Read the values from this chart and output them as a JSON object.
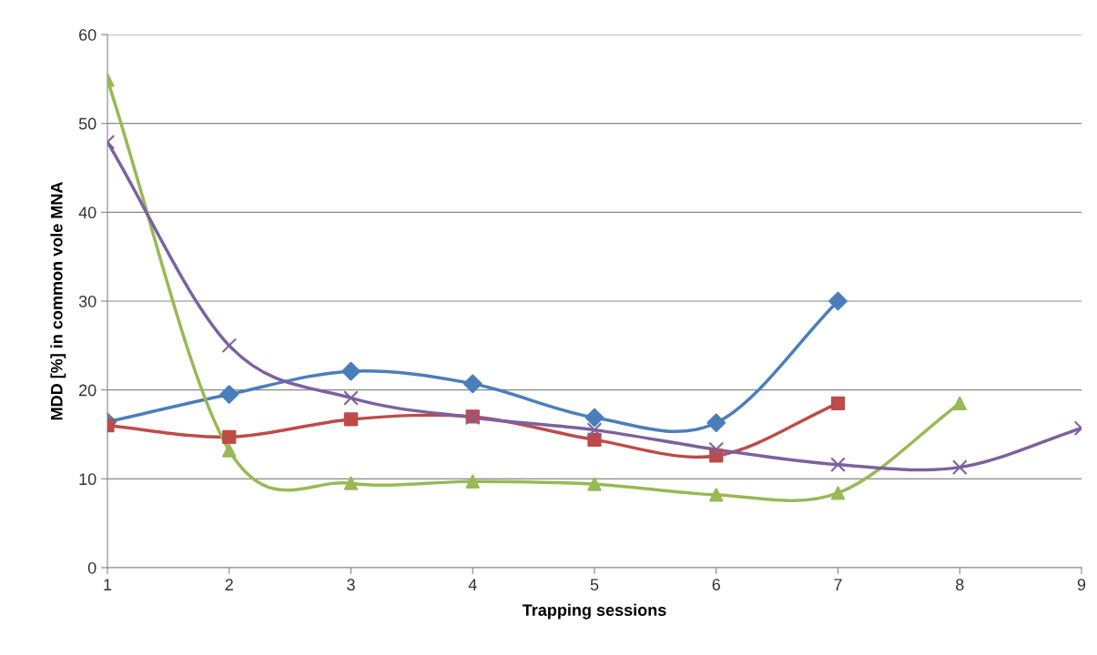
{
  "chart_data": {
    "type": "line",
    "xlabel": "Trapping sessions",
    "ylabel": "MDD [%] in common vole MNA",
    "x": [
      1,
      2,
      3,
      4,
      5,
      6,
      7,
      8,
      9
    ],
    "series": [
      {
        "color": "#4a7ebb",
        "marker": "diamond",
        "values": [
          16.4,
          19.5,
          22.1,
          20.7,
          16.9,
          16.3,
          30.0,
          null,
          null
        ]
      },
      {
        "color": "#be4b48",
        "marker": "square",
        "values": [
          16.0,
          14.7,
          16.7,
          17.0,
          14.4,
          12.6,
          18.5,
          null,
          null
        ]
      },
      {
        "color": "#98b954",
        "marker": "triangle",
        "values": [
          54.9,
          13.2,
          9.5,
          9.7,
          9.4,
          8.2,
          8.4,
          18.5,
          null
        ]
      },
      {
        "color": "#7d60a0",
        "marker": "cross",
        "values": [
          47.9,
          25.0,
          19.1,
          16.9,
          15.5,
          13.3,
          11.6,
          11.3,
          15.7
        ]
      }
    ],
    "xlim": [
      1,
      9
    ],
    "xticks": [
      1,
      2,
      3,
      4,
      5,
      6,
      7,
      8,
      9
    ],
    "ylim": [
      0,
      60
    ],
    "yticks": [
      0,
      10,
      20,
      30,
      40,
      50,
      60
    ],
    "grid": "y",
    "legend": false
  }
}
